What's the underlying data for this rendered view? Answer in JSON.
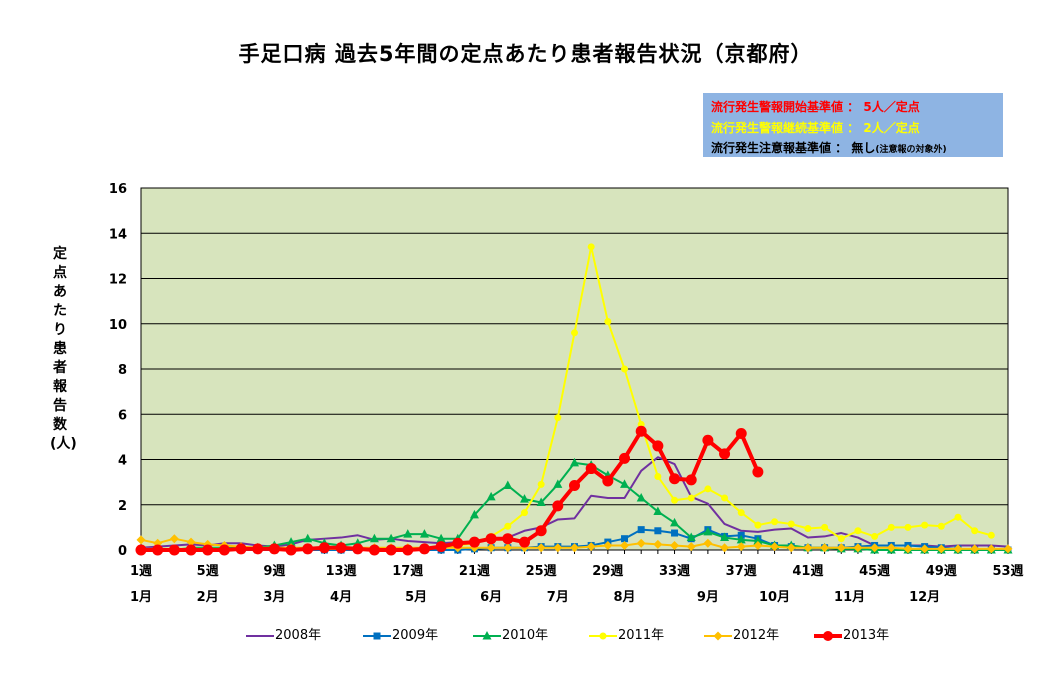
{
  "chart_data": {
    "type": "line",
    "title": "手足口病  過去5年間の定点あたり患者報告状況（京都府）",
    "ylabel": "定点あたり患者報告数(人)",
    "ylim": [
      0,
      16
    ],
    "yticks": [
      "0",
      "2",
      "4",
      "6",
      "8",
      "10",
      "12",
      "14",
      "16"
    ],
    "grid": true,
    "legend_position": "bottom",
    "week_labels": [
      "1週",
      "5週",
      "9週",
      "13週",
      "17週",
      "21週",
      "25週",
      "29週",
      "33週",
      "37週",
      "41週",
      "45週",
      "49週",
      "53週"
    ],
    "month_labels": [
      "1月",
      "2月",
      "3月",
      "4月",
      "5月",
      "6月",
      "7月",
      "8月",
      "9月",
      "10月",
      "11月",
      "12月"
    ],
    "alert_box": {
      "line1": "流行発生警報開始基準値 ： 5人／定点",
      "line2": "流行発生警報継続基準値 ： 2人／定点",
      "line3": "流行発生注意報基準値 ： 無し",
      "line3_note": "(注意報の対象外)",
      "line1_color": "#ff0000",
      "line2_color": "#ffff00",
      "line3_color": "#000000",
      "background": "#8eb4e3"
    },
    "series": [
      {
        "name": "2008年",
        "color": "#7030a0",
        "marker": "none",
        "values": [
          0.1,
          0.15,
          0.2,
          0.25,
          0.2,
          0.3,
          0.3,
          0.2,
          0.15,
          0.25,
          0.45,
          0.5,
          0.55,
          0.65,
          0.45,
          0.5,
          0.4,
          0.35,
          0.3,
          0.35,
          0.35,
          0.45,
          0.55,
          0.85,
          1.0,
          1.35,
          1.4,
          2.4,
          2.3,
          2.3,
          3.5,
          4.1,
          3.8,
          2.35,
          2.05,
          1.15,
          0.85,
          0.8,
          0.9,
          0.95,
          0.55,
          0.6,
          0.75,
          0.55,
          0.2,
          0.2,
          0.2,
          0.2,
          0.15,
          0.2,
          0.2,
          0.2,
          0.15
        ]
      },
      {
        "name": "2009年",
        "color": "#0070c0",
        "marker": "square",
        "values": [
          0,
          0,
          0,
          0,
          0,
          0,
          0,
          0,
          0,
          0,
          0,
          0,
          0,
          0,
          0,
          0,
          0,
          0,
          0,
          0,
          0.05,
          0.1,
          0.1,
          0.1,
          0.15,
          0.15,
          0.15,
          0.2,
          0.35,
          0.5,
          0.9,
          0.85,
          0.75,
          0.5,
          0.9,
          0.6,
          0.65,
          0.5,
          0.2,
          0.15,
          0.1,
          0.1,
          0.1,
          0.15,
          0.2,
          0.2,
          0.2,
          0.15,
          0.1,
          0.05,
          0,
          0,
          0
        ]
      },
      {
        "name": "2010年",
        "color": "#00b050",
        "marker": "triangle",
        "values": [
          0,
          0,
          0,
          0.1,
          0.1,
          0.1,
          0.1,
          0.1,
          0.2,
          0.35,
          0.5,
          0.3,
          0.2,
          0.3,
          0.5,
          0.5,
          0.7,
          0.7,
          0.5,
          0.5,
          1.55,
          2.35,
          2.85,
          2.25,
          2.1,
          2.9,
          3.85,
          3.75,
          3.3,
          2.9,
          2.3,
          1.7,
          1.2,
          0.55,
          0.8,
          0.55,
          0.45,
          0.4,
          0.2,
          0.2,
          0.1,
          0.1,
          0.05,
          0.05,
          0,
          0,
          0,
          0,
          0,
          0,
          0,
          0,
          0
        ]
      },
      {
        "name": "2011年",
        "color": "#ffff00",
        "marker": "circle",
        "values": [
          0.05,
          0.05,
          0.05,
          0.05,
          0.05,
          0.05,
          0.05,
          0.05,
          0.05,
          0.05,
          0.05,
          0.05,
          0.05,
          0.05,
          0.05,
          0.05,
          0.05,
          0.1,
          0.1,
          0.2,
          0.3,
          0.6,
          1.05,
          1.65,
          2.9,
          5.85,
          9.6,
          13.4,
          10.1,
          8.0,
          5.55,
          3.25,
          2.2,
          2.3,
          2.7,
          2.3,
          1.65,
          1.1,
          1.25,
          1.15,
          0.95,
          1.0,
          0.5,
          0.85,
          0.6,
          1.0,
          1.0,
          1.1,
          1.05,
          1.45,
          0.85,
          0.65,
          null
        ]
      },
      {
        "name": "2012年",
        "color": "#ffc000",
        "marker": "diamond",
        "values": [
          0.45,
          0.3,
          0.5,
          0.35,
          0.25,
          0.2,
          0.15,
          0.1,
          0.1,
          0.1,
          0.1,
          0.1,
          0.1,
          0.1,
          0.1,
          0.1,
          0.1,
          0.1,
          0.1,
          0.1,
          0.1,
          0.1,
          0.1,
          0.1,
          0.1,
          0.1,
          0.1,
          0.15,
          0.2,
          0.2,
          0.3,
          0.25,
          0.2,
          0.15,
          0.3,
          0.1,
          0.15,
          0.2,
          0.15,
          0.1,
          0.1,
          0.1,
          0.1,
          0.1,
          0.1,
          0.1,
          0.05,
          0.05,
          0.05,
          0.05,
          0.05,
          0.05,
          0.05
        ]
      },
      {
        "name": "2013年",
        "color": "#ff0000",
        "marker": "circle-large",
        "values": [
          0,
          0,
          0,
          0,
          0,
          0,
          0.05,
          0.05,
          0.05,
          0,
          0.05,
          0.1,
          0.1,
          0.05,
          0,
          0,
          0,
          0.05,
          0.15,
          0.3,
          0.35,
          0.5,
          0.5,
          0.35,
          0.85,
          1.95,
          2.85,
          3.6,
          3.05,
          4.05,
          5.25,
          4.6,
          3.15,
          3.1,
          4.85,
          4.25,
          5.15,
          3.45,
          null,
          null,
          null,
          null,
          null,
          null,
          null,
          null,
          null,
          null,
          null,
          null,
          null,
          null,
          null
        ]
      }
    ]
  }
}
